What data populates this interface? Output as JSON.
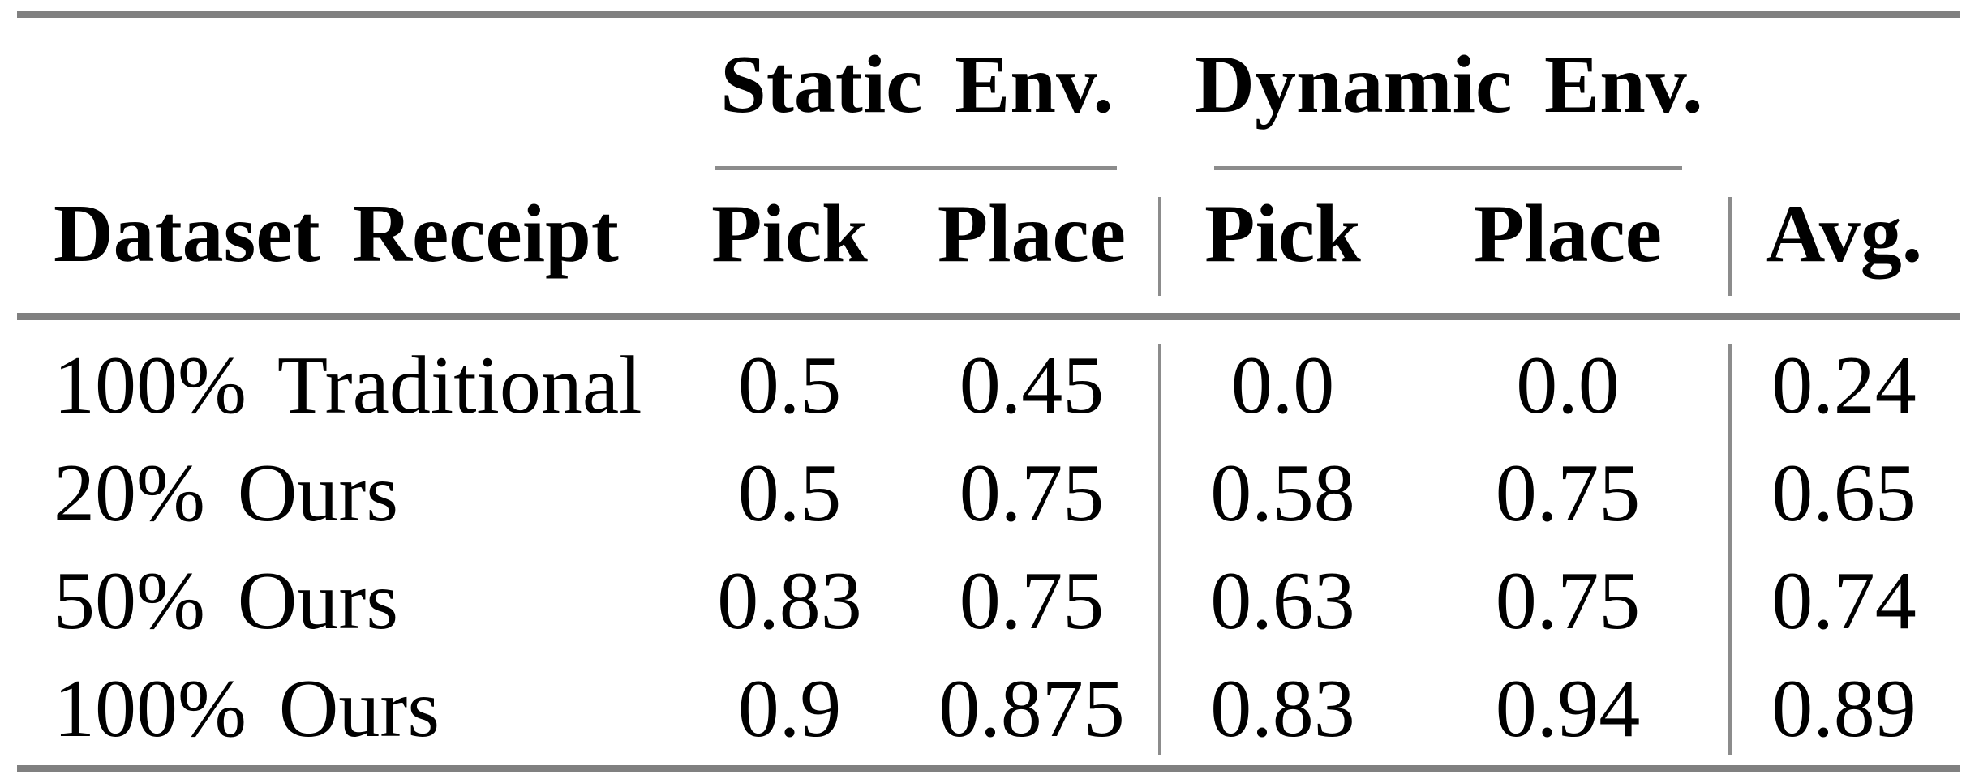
{
  "table": {
    "column_groups": [
      {
        "label": "Static Env."
      },
      {
        "label": "Dynamic Env."
      }
    ],
    "header": {
      "row_label": "Dataset Receipt",
      "static_pick": "Pick",
      "static_place": "Place",
      "dynamic_pick": "Pick",
      "dynamic_place": "Place",
      "avg": "Avg."
    },
    "rows": [
      {
        "label": "100% Traditional",
        "static_pick": "0.5",
        "static_place": "0.45",
        "dynamic_pick": "0.0",
        "dynamic_place": "0.0",
        "avg": "0.24"
      },
      {
        "label": "20% Ours",
        "static_pick": "0.5",
        "static_place": "0.75",
        "dynamic_pick": "0.58",
        "dynamic_place": "0.75",
        "avg": "0.65"
      },
      {
        "label": "50% Ours",
        "static_pick": "0.83",
        "static_place": "0.75",
        "dynamic_pick": "0.63",
        "dynamic_place": "0.75",
        "avg": "0.74"
      },
      {
        "label": "100% Ours",
        "static_pick": "0.9",
        "static_place": "0.875",
        "dynamic_pick": "0.83",
        "dynamic_place": "0.94",
        "avg": "0.89"
      }
    ],
    "colors": {
      "rule_heavy": "#808080",
      "rule_light": "#8c8c8c",
      "text": "#000000",
      "background": "#ffffff"
    }
  },
  "chart_data": {
    "type": "table",
    "title": "",
    "column_groups": [
      "Static Env.",
      "Dynamic Env."
    ],
    "columns": [
      "Dataset Receipt",
      "Static Env. Pick",
      "Static Env. Place",
      "Dynamic Env. Pick",
      "Dynamic Env. Place",
      "Avg."
    ],
    "rows": [
      [
        "100% Traditional",
        0.5,
        0.45,
        0.0,
        0.0,
        0.24
      ],
      [
        "20% Ours",
        0.5,
        0.75,
        0.58,
        0.75,
        0.65
      ],
      [
        "50% Ours",
        0.83,
        0.75,
        0.63,
        0.75,
        0.74
      ],
      [
        "100% Ours",
        0.9,
        0.875,
        0.83,
        0.94,
        0.89
      ]
    ]
  }
}
